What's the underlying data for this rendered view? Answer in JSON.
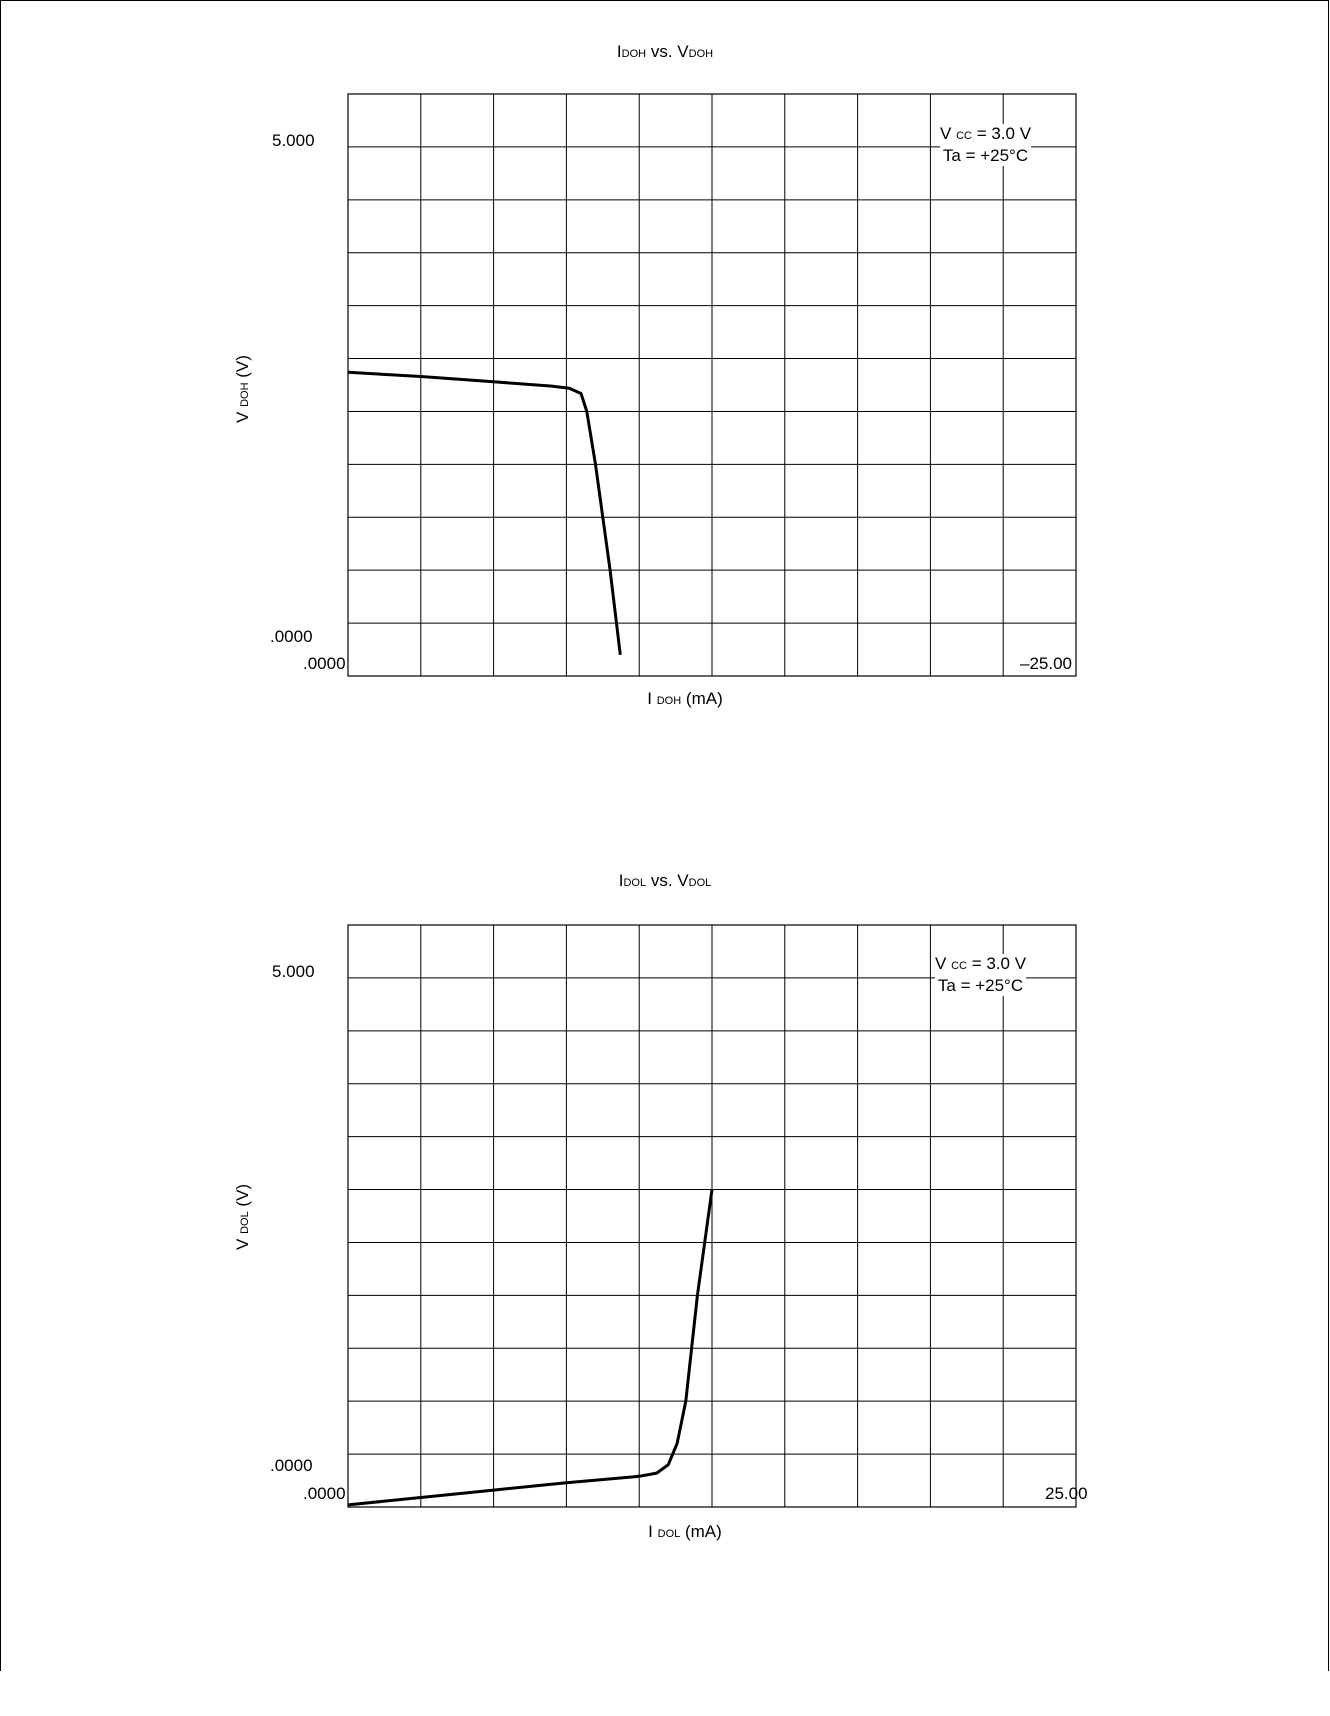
{
  "chart_data": [
    {
      "type": "line",
      "title": {
        "a": "I",
        "a_sub": "DOH",
        "b": " vs. V",
        "b_sub": "DOH"
      },
      "xlabel": {
        "pre": "I",
        "sub": "DOH",
        "post": " (mA)"
      },
      "ylabel": {
        "pre": "V",
        "sub": "DOH",
        "post": " (V)"
      },
      "x_tick_labels": [
        ".0000",
        "–25.00"
      ],
      "y_tick_labels": [
        "5.000",
        ".0000"
      ],
      "xlim": [
        0,
        -25
      ],
      "ylim": [
        0,
        5.5
      ],
      "grid": true,
      "x_divisions": 10,
      "y_divisions": 11,
      "legend": {
        "line1": {
          "pre": "V",
          "sub": "CC",
          "post": " = 3.0 V"
        },
        "line2": "Ta = +25°C",
        "placement": "top-right"
      },
      "series": [
        {
          "x": [
            0,
            -2.5,
            -5.0,
            -7.0,
            -7.6,
            -8.0,
            -8.2,
            -8.5,
            -9.0,
            -9.35
          ],
          "y": [
            2.87,
            2.83,
            2.78,
            2.74,
            2.72,
            2.67,
            2.5,
            2.0,
            1.0,
            0.2
          ]
        }
      ]
    },
    {
      "type": "line",
      "title": {
        "a": "I",
        "a_sub": "DOL",
        "b": " vs. V",
        "b_sub": "DOL"
      },
      "xlabel": {
        "pre": "I",
        "sub": "DOL",
        "post": " (mA)"
      },
      "ylabel": {
        "pre": "V",
        "sub": "DOL",
        "post": " (V)"
      },
      "x_tick_labels": [
        ".0000",
        "25.00"
      ],
      "y_tick_labels": [
        "5.000",
        ".0000"
      ],
      "xlim": [
        0,
        25
      ],
      "ylim": [
        0,
        5.5
      ],
      "grid": true,
      "x_divisions": 10,
      "y_divisions": 11,
      "legend": {
        "line1": {
          "pre": "V",
          "sub": "CC",
          "post": " = 3.0 V"
        },
        "line2": "Ta = +25°C",
        "placement": "top-right"
      },
      "series": [
        {
          "x": [
            0,
            2.5,
            5.0,
            7.5,
            10.0,
            10.6,
            11.0,
            11.3,
            11.6,
            12.0,
            12.5
          ],
          "y": [
            0.02,
            0.09,
            0.16,
            0.23,
            0.29,
            0.32,
            0.4,
            0.6,
            1.0,
            2.0,
            3.0
          ]
        }
      ]
    }
  ]
}
